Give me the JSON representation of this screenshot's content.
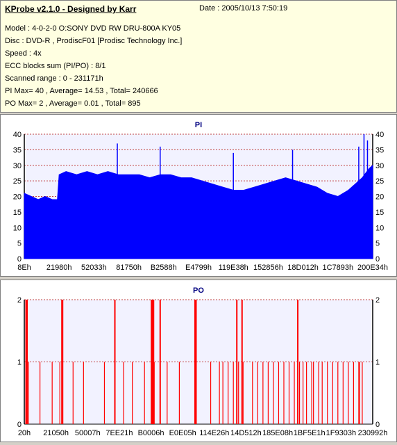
{
  "app": {
    "title": "KProbe v2.1.0 - Designed by Karr",
    "date": "Date : 2005/10/13 7:50:19"
  },
  "info": {
    "model": "Model : 4-0-2-0 O:SONY    DVD RW DRU-800A  KY05",
    "disc": "Disc : DVD-R , ProdiscF01 [Prodisc Technology Inc.]",
    "speed": "Speed : 4x",
    "ecc": "ECC blocks sum (PI/PO) : 8/1",
    "range": "Scanned range : 0 - 231171h",
    "pi_stats": "PI Max= 40 , Average= 14.53 , Total= 240666",
    "po_stats": "PO Max= 2 , Average= 0.01 , Total= 895"
  },
  "colors": {
    "pi_fill": "#0000ff",
    "po_line": "#ff0000",
    "plot_bg": "#f2f2ff",
    "grid": "#c04040",
    "chart_title": "#000080"
  },
  "chart_data": [
    {
      "type": "bar",
      "title": "PI",
      "y_ticks": [
        "0",
        "5",
        "10",
        "15",
        "20",
        "25",
        "30",
        "35",
        "40"
      ],
      "ylim": [
        0,
        40
      ],
      "x_tick_labels": [
        "8Eh",
        "21980h",
        "52033h",
        "81750h",
        "B2588h",
        "E4799h",
        "119E38h",
        "152856h",
        "18D012h",
        "1C7893h",
        "200E34h"
      ],
      "x": [
        0,
        0.02,
        0.04,
        0.06,
        0.08,
        0.095,
        0.1,
        0.12,
        0.15,
        0.18,
        0.21,
        0.24,
        0.27,
        0.3,
        0.33,
        0.36,
        0.39,
        0.42,
        0.45,
        0.48,
        0.51,
        0.54,
        0.57,
        0.6,
        0.63,
        0.66,
        0.69,
        0.72,
        0.75,
        0.78,
        0.81,
        0.84,
        0.87,
        0.9,
        0.93,
        0.95,
        0.97,
        0.99,
        1.0
      ],
      "values": [
        21,
        20,
        19,
        20,
        19,
        19,
        27,
        28,
        27,
        28,
        27,
        28,
        27,
        27,
        27,
        26,
        27,
        27,
        26,
        26,
        25,
        24,
        23,
        22,
        22,
        23,
        24,
        25,
        26,
        25,
        24,
        23,
        21,
        20,
        22,
        24,
        26,
        29,
        30
      ],
      "peaks": [
        {
          "x": 0.267,
          "value": 37
        },
        {
          "x": 0.39,
          "value": 36
        },
        {
          "x": 0.6,
          "value": 34
        },
        {
          "x": 0.77,
          "value": 35
        },
        {
          "x": 0.96,
          "value": 36
        },
        {
          "x": 0.975,
          "value": 40
        },
        {
          "x": 0.985,
          "value": 38
        }
      ],
      "ylabel": "",
      "xlabel": "",
      "grid": true
    },
    {
      "type": "bar",
      "title": "PO",
      "y_ticks": [
        "0",
        "1",
        "2"
      ],
      "ylim": [
        0,
        2
      ],
      "x_tick_labels": [
        "20h",
        "21050h",
        "50007h",
        "7EE21h",
        "B0006h",
        "E0E05h",
        "114E26h",
        "14D512h",
        "185E08h",
        "1BF5E1h",
        "1F9303h",
        "230992h"
      ],
      "x": [
        0.005,
        0.008,
        0.012,
        0.045,
        0.08,
        0.102,
        0.108,
        0.11,
        0.14,
        0.17,
        0.23,
        0.26,
        0.285,
        0.31,
        0.345,
        0.365,
        0.367,
        0.369,
        0.371,
        0.373,
        0.39,
        0.41,
        0.445,
        0.49,
        0.493,
        0.535,
        0.56,
        0.57,
        0.585,
        0.6,
        0.61,
        0.615,
        0.625,
        0.628,
        0.655,
        0.67,
        0.685,
        0.7,
        0.715,
        0.73,
        0.745,
        0.76,
        0.775,
        0.785,
        0.79,
        0.8,
        0.81,
        0.825,
        0.83,
        0.845,
        0.855,
        0.87,
        0.885,
        0.9,
        0.915,
        0.93,
        0.945,
        0.96,
        0.962,
        0.97
      ],
      "values": [
        2,
        2,
        1,
        1,
        1,
        1,
        2,
        2,
        1,
        1,
        1,
        2,
        1,
        1,
        1,
        2,
        2,
        2,
        2,
        1,
        2,
        1,
        1,
        2,
        2,
        1,
        1,
        1,
        1,
        1,
        2,
        1,
        2,
        1,
        1,
        1,
        1,
        1,
        1,
        1,
        1,
        1,
        1,
        2,
        1,
        1,
        1,
        1,
        1,
        1,
        1,
        1,
        1,
        1,
        1,
        1,
        1,
        1,
        1,
        1
      ],
      "ylabel": "",
      "xlabel": "",
      "grid": true
    }
  ]
}
